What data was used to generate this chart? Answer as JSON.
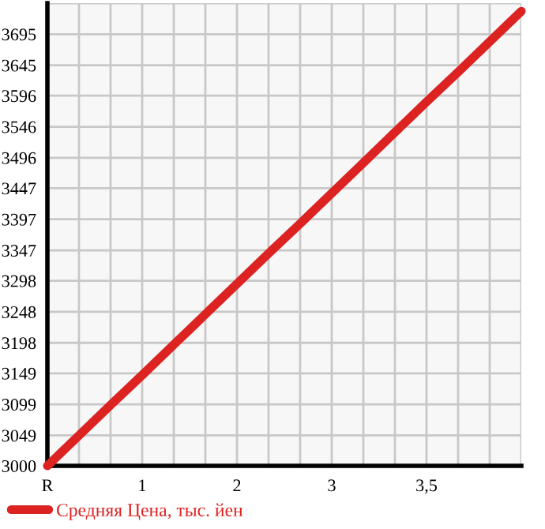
{
  "chart_data": {
    "type": "line",
    "categories": [
      "R",
      null,
      null,
      "1",
      null,
      null,
      "2",
      null,
      null,
      "3",
      null,
      null,
      "3,5",
      null,
      null,
      null
    ],
    "series": [
      {
        "name": "Средняя Цена, тыс. йен",
        "color": "#dd2222",
        "values": [
          3000,
          3049,
          3098,
          3146,
          3195,
          3244,
          3293,
          3342,
          3390,
          3439,
          3488,
          3537,
          3586,
          3634,
          3683,
          3732
        ]
      }
    ],
    "ylim": [
      3000,
      3745
    ],
    "yticks": [
      3000,
      3049,
      3099,
      3149,
      3198,
      3248,
      3298,
      3347,
      3397,
      3447,
      3496,
      3546,
      3596,
      3645,
      3695,
      {
        "value": 3745,
        "label": null
      }
    ],
    "grid": true,
    "legend": "bottom left",
    "marker": "none",
    "line_style": "solid"
  }
}
